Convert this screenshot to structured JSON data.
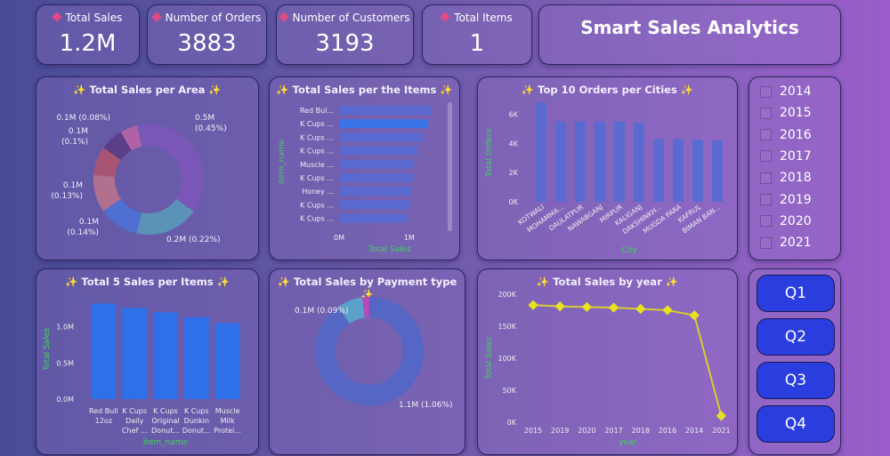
{
  "kpis": [
    {
      "label": "Total Sales",
      "value": "1.2M"
    },
    {
      "label": "Number of Orders",
      "value": "3883"
    },
    {
      "label": "Number of Customers",
      "value": "3193"
    },
    {
      "label": "Total Items",
      "value": "1"
    }
  ],
  "dashboard_title": "Smart Sales Analytics",
  "colors": {
    "accent_green": "#3fd45a",
    "bar_blue": "#2f6fe8",
    "bar_slate": "#5a6ad0",
    "line_yellow": "#e8e020",
    "button_blue": "#2a3ee0"
  },
  "year_slicer": {
    "years": [
      "2014",
      "2015",
      "2016",
      "2017",
      "2018",
      "2019",
      "2020",
      "2021"
    ]
  },
  "quarter_buttons": [
    "Q1",
    "Q2",
    "Q3",
    "Q4"
  ],
  "chart_data": [
    {
      "id": "area",
      "type": "pie",
      "title": "✨ Total Sales per Area ✨",
      "donut": true,
      "slices": [
        {
          "label": "0.5M (0.45%)",
          "value": 0.45,
          "color": "#7a56b8"
        },
        {
          "label": "0.2M (0.22%)",
          "value": 0.22,
          "color": "#5a92b8"
        },
        {
          "label": "0.1M (0.14%)",
          "value": 0.14,
          "color": "#4f6fd2"
        },
        {
          "label": "0.1M (0.13%)",
          "value": 0.13,
          "color": "#b0708e"
        },
        {
          "label": "0.1M (0.1%)",
          "value": 0.1,
          "color": "#a85474"
        },
        {
          "label": "0.1M (0.08%)",
          "value": 0.08,
          "color": "#5a3e88"
        },
        {
          "label": "",
          "value": 0.06,
          "color": "#b062a6"
        }
      ]
    },
    {
      "id": "items",
      "type": "bar",
      "orientation": "horizontal",
      "title": "✨ Total Sales per the Items ✨",
      "xlabel": "Total Sales",
      "ylabel": "item_name",
      "categories": [
        "Red Bul...",
        "K Cups ...",
        "K Cups ...",
        "K Cups ...",
        "Muscle ...",
        "K Cups ...",
        "Honey ...",
        "K Cups ...",
        "K Cups ..."
      ],
      "values": [
        1.32,
        1.27,
        1.2,
        1.12,
        1.06,
        1.05,
        1.03,
        1.01,
        0.97
      ],
      "xticks": [
        "0M",
        "1M"
      ],
      "xlim": [
        0,
        1.35
      ]
    },
    {
      "id": "cities",
      "type": "bar",
      "title": "✨ Top 10 Orders per Cities ✨",
      "xlabel": "City",
      "ylabel": "Total Orders",
      "categories": [
        "KOTWALI",
        "MOHAMMA...",
        "DAULATPUR",
        "NAWABGANJ",
        "MIRPUR",
        "KALIGANJ",
        "DAKSHINKH...",
        "MUGDA PARA",
        "KAFRUL",
        "BIMAN BAN..."
      ],
      "values": [
        6800,
        5500,
        5500,
        5500,
        5500,
        5400,
        4300,
        4300,
        4250,
        4200
      ],
      "yticks": [
        "0K",
        "2K",
        "4K",
        "6K"
      ],
      "ylim": [
        0,
        7000
      ]
    },
    {
      "id": "top5",
      "type": "bar",
      "title": "✨ Total 5 Sales per Items ✨",
      "xlabel": "item_name",
      "ylabel": "Total Sales",
      "categories": [
        [
          "Red Bull",
          "12oz"
        ],
        [
          "K Cups",
          "Daily",
          "Chef ..."
        ],
        [
          "K Cups",
          "Original",
          "Donut..."
        ],
        [
          "K Cups",
          "Dunkin",
          "Donut..."
        ],
        [
          "Muscle",
          "Milk",
          "Protei..."
        ]
      ],
      "values": [
        1.32,
        1.26,
        1.2,
        1.13,
        1.05
      ],
      "yticks": [
        "0.0M",
        "0.5M",
        "1.0M"
      ],
      "ylim": [
        0,
        1.35
      ]
    },
    {
      "id": "payment",
      "type": "pie",
      "title": "✨ Total Sales by Payment type ✨",
      "donut": true,
      "slices": [
        {
          "label": "1.1M (1.06%)",
          "value": 1.06,
          "color": "#5566c4"
        },
        {
          "label": "0.1M (0.09%)",
          "value": 0.09,
          "color": "#5aa0c8"
        },
        {
          "label": "",
          "value": 0.025,
          "color": "#b848b8"
        }
      ]
    },
    {
      "id": "year",
      "type": "line",
      "title": "✨ Total Sales by year ✨",
      "xlabel": "year",
      "ylabel": "Total Sales",
      "categories": [
        "2015",
        "2019",
        "2020",
        "2017",
        "2018",
        "2016",
        "2014",
        "2021"
      ],
      "values": [
        183000,
        181000,
        180000,
        179000,
        177000,
        175000,
        167000,
        10000
      ],
      "yticks": [
        "0K",
        "50K",
        "100K",
        "150K",
        "200K"
      ],
      "ylim": [
        0,
        200000
      ]
    }
  ]
}
